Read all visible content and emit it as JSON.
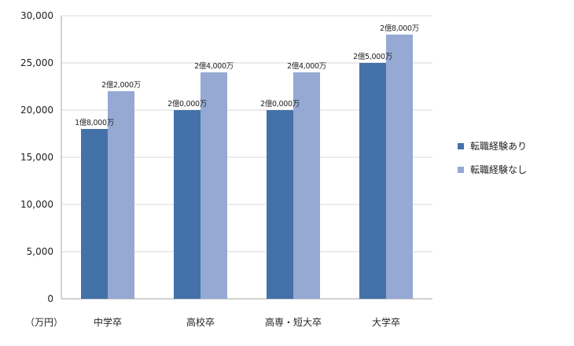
{
  "chart_data": {
    "type": "bar",
    "title": "",
    "xlabel": "",
    "ylabel": "",
    "unit_label": "（万円）",
    "categories": [
      "中学卒",
      "高校卒",
      "高専・短大卒",
      "大学卒"
    ],
    "ylim": [
      0,
      30000
    ],
    "yticks": [
      0,
      5000,
      10000,
      15000,
      20000,
      25000,
      30000
    ],
    "ytick_labels": [
      "0",
      "5,000",
      "10,000",
      "15,000",
      "20,000",
      "25,000",
      "30,000"
    ],
    "grid": true,
    "legend_position": "right",
    "series": [
      {
        "name": "転職経験あり",
        "color": "#4472a8",
        "values": [
          18000,
          20000,
          20000,
          25000
        ],
        "labels": [
          "1億8,000万",
          "2億0,000万",
          "2億0,000万",
          "2億5,000万"
        ]
      },
      {
        "name": "転職経験なし",
        "color": "#95a9d3",
        "values": [
          22000,
          24000,
          24000,
          28000
        ],
        "labels": [
          "2億2,000万",
          "2億4,000万",
          "2億4,000万",
          "2億8,000万"
        ]
      }
    ]
  }
}
